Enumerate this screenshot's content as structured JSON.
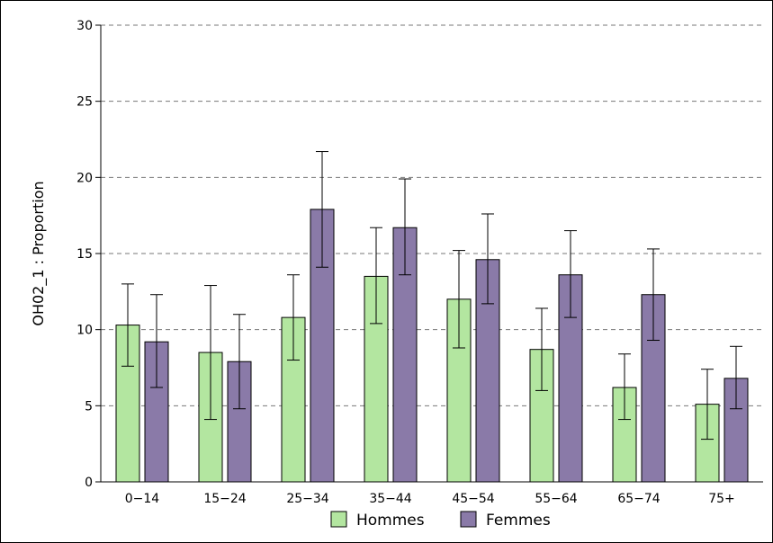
{
  "chart_data": {
    "type": "bar",
    "title": "",
    "xlabel": "",
    "ylabel": "OH02_1 : Proportion",
    "ylim": [
      0,
      30
    ],
    "yticks": [
      0,
      5,
      10,
      15,
      20,
      25,
      30
    ],
    "grid": "horizontal-dashed",
    "categories": [
      "0−14",
      "15−24",
      "25−34",
      "35−44",
      "45−54",
      "55−64",
      "65−74",
      "75+"
    ],
    "series": [
      {
        "name": "Hommes",
        "color": "#b3e6a0",
        "values": [
          10.3,
          8.5,
          10.8,
          13.5,
          12.0,
          8.7,
          6.2,
          5.1
        ],
        "lower": [
          7.6,
          4.1,
          8.0,
          10.4,
          8.8,
          6.0,
          4.1,
          2.8
        ],
        "upper": [
          13.0,
          12.9,
          13.6,
          16.7,
          15.2,
          11.4,
          8.4,
          7.4
        ]
      },
      {
        "name": "Femmes",
        "color": "#8a7aa8",
        "values": [
          9.2,
          7.9,
          17.9,
          16.7,
          14.6,
          13.6,
          12.3,
          6.8
        ],
        "lower": [
          6.2,
          4.8,
          14.1,
          13.6,
          11.7,
          10.8,
          9.3,
          4.8
        ],
        "upper": [
          12.3,
          11.0,
          21.7,
          19.9,
          17.6,
          16.5,
          15.3,
          8.9
        ]
      }
    ],
    "legend": "bottom"
  }
}
